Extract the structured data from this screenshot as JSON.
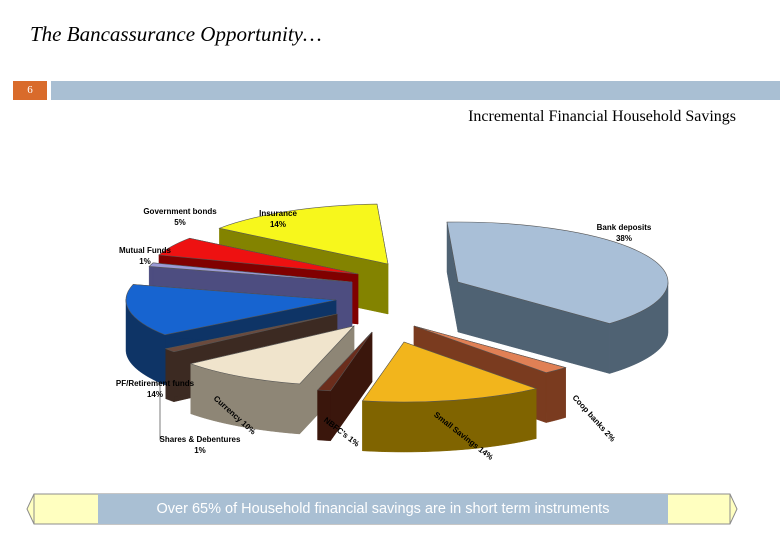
{
  "slide": {
    "title": "The Bancassurance Opportunity…",
    "slide_number": "6"
  },
  "chart_data": {
    "type": "pie",
    "title": "Incremental Financial Household Savings",
    "series": [
      {
        "label": "Bank deposits",
        "pct_label": "38%",
        "value": 38,
        "color": "#a9bfd7",
        "side": "#4f6273"
      },
      {
        "label": "Coop banks",
        "pct_label": "2%",
        "value": 2,
        "color": "#e08055",
        "side": "#7a3b1f"
      },
      {
        "label": "Small Savings",
        "pct_label": "14%",
        "value": 14,
        "color": "#f2b51c",
        "side": "#806400"
      },
      {
        "label": "NBFC's",
        "pct_label": "1%",
        "value": 1,
        "color": "#6b2d1c",
        "side": "#3a160c"
      },
      {
        "label": "Currency",
        "pct_label": "10%",
        "value": 10,
        "color": "#f0e4cc",
        "side": "#8e8676"
      },
      {
        "label": "Shares & Debentures",
        "pct_label": "1%",
        "value": 1,
        "color": "#6b4a3d",
        "side": "#3c2a22"
      },
      {
        "label": "PF/Retirement funds",
        "pct_label": "14%",
        "value": 14,
        "color": "#1764d0",
        "side": "#0e3466"
      },
      {
        "label": "Mutual Funds",
        "pct_label": "1%",
        "value": 1,
        "color": "#9a9ad6",
        "side": "#4d4d80"
      },
      {
        "label": "Government bonds",
        "pct_label": "5%",
        "value": 5,
        "color": "#ee1111",
        "side": "#800000"
      },
      {
        "label": "Insurance",
        "pct_label": "14%",
        "value": 14,
        "color": "#f7f71c",
        "side": "#838300"
      }
    ]
  },
  "callout": {
    "text": "Over 65% of Household financial savings are in short term instruments"
  }
}
